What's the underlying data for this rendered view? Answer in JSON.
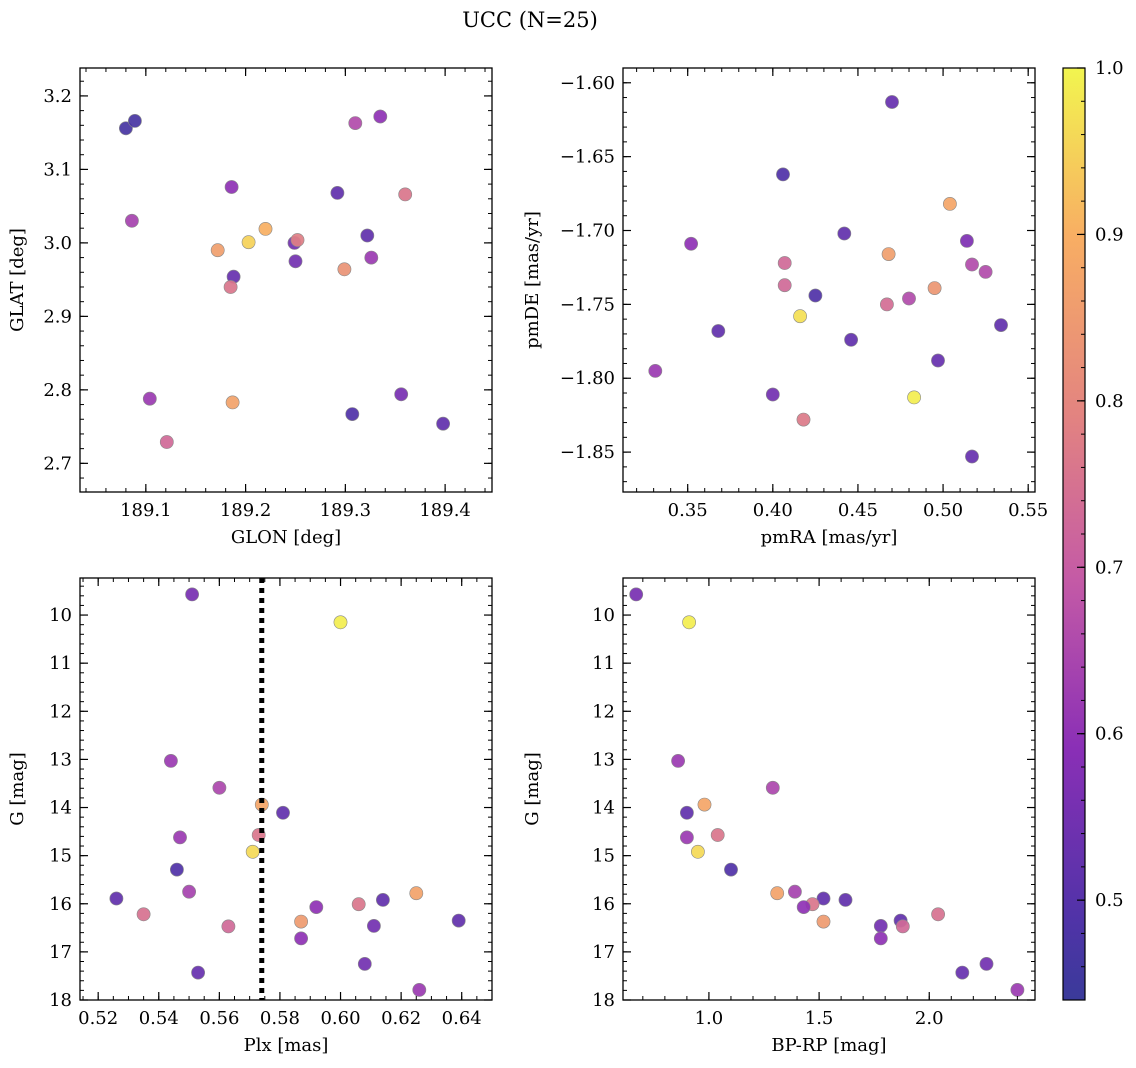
{
  "figure_title": "UCC (N=25)",
  "colorbar": {
    "min": 0.44,
    "max": 1.0,
    "ticks": [
      {
        "v": 0.5,
        "label": "0.5"
      },
      {
        "v": 0.6,
        "label": "0.6"
      },
      {
        "v": 0.7,
        "label": "0.7"
      },
      {
        "v": 0.8,
        "label": "0.8"
      },
      {
        "v": 0.9,
        "label": "0.9"
      },
      {
        "v": 1.0,
        "label": "1.0"
      }
    ],
    "colormap": "plasma"
  },
  "chart_data": [
    {
      "type": "scatter",
      "id": "p1",
      "xlabel": "GLON [deg]",
      "ylabel": "GLAT [deg]",
      "xlim": [
        189.034,
        189.447
      ],
      "ylim": [
        2.661,
        3.238
      ],
      "y_inverted": false,
      "xticks": [
        {
          "v": 189.1,
          "label": "189.1"
        },
        {
          "v": 189.2,
          "label": "189.2"
        },
        {
          "v": 189.3,
          "label": "189.3"
        },
        {
          "v": 189.4,
          "label": "189.4"
        }
      ],
      "yticks": [
        {
          "v": 2.7,
          "label": "2.7"
        },
        {
          "v": 2.8,
          "label": "2.8"
        },
        {
          "v": 2.9,
          "label": "2.9"
        },
        {
          "v": 3.0,
          "label": "3.0"
        },
        {
          "v": 3.1,
          "label": "3.1"
        },
        {
          "v": 3.2,
          "label": "3.2"
        }
      ],
      "x_minor_step": 0.02,
      "y_minor_step": 0.02,
      "points": [
        {
          "x": 189.08,
          "y": 3.156,
          "c": 0.47
        },
        {
          "x": 189.089,
          "y": 3.166,
          "c": 0.47
        },
        {
          "x": 189.086,
          "y": 3.03,
          "c": 0.64
        },
        {
          "x": 189.186,
          "y": 3.076,
          "c": 0.6
        },
        {
          "x": 189.31,
          "y": 3.163,
          "c": 0.66
        },
        {
          "x": 189.335,
          "y": 3.172,
          "c": 0.6
        },
        {
          "x": 189.292,
          "y": 3.068,
          "c": 0.52
        },
        {
          "x": 189.36,
          "y": 3.066,
          "c": 0.76
        },
        {
          "x": 189.172,
          "y": 2.99,
          "c": 0.86
        },
        {
          "x": 189.203,
          "y": 3.001,
          "c": 0.95
        },
        {
          "x": 189.22,
          "y": 3.019,
          "c": 0.9
        },
        {
          "x": 189.249,
          "y": 3.0,
          "c": 0.55
        },
        {
          "x": 189.252,
          "y": 3.004,
          "c": 0.78
        },
        {
          "x": 189.322,
          "y": 3.01,
          "c": 0.52
        },
        {
          "x": 189.25,
          "y": 2.975,
          "c": 0.55
        },
        {
          "x": 189.326,
          "y": 2.98,
          "c": 0.62
        },
        {
          "x": 189.299,
          "y": 2.964,
          "c": 0.83
        },
        {
          "x": 189.188,
          "y": 2.954,
          "c": 0.53
        },
        {
          "x": 189.185,
          "y": 2.94,
          "c": 0.76
        },
        {
          "x": 189.104,
          "y": 2.788,
          "c": 0.62
        },
        {
          "x": 189.187,
          "y": 2.783,
          "c": 0.87
        },
        {
          "x": 189.356,
          "y": 2.794,
          "c": 0.56
        },
        {
          "x": 189.307,
          "y": 2.767,
          "c": 0.49
        },
        {
          "x": 189.398,
          "y": 2.754,
          "c": 0.52
        },
        {
          "x": 189.121,
          "y": 2.729,
          "c": 0.73
        }
      ]
    },
    {
      "type": "scatter",
      "id": "p2",
      "xlabel": "pmRA [mas/yr]",
      "ylabel": "pmDE [mas/yr]",
      "xlim": [
        0.312,
        0.554
      ],
      "ylim": [
        -1.877,
        -1.59
      ],
      "y_inverted": false,
      "xticks": [
        {
          "v": 0.35,
          "label": "0.35"
        },
        {
          "v": 0.4,
          "label": "0.40"
        },
        {
          "v": 0.45,
          "label": "0.45"
        },
        {
          "v": 0.5,
          "label": "0.50"
        },
        {
          "v": 0.55,
          "label": "0.55"
        }
      ],
      "yticks": [
        {
          "v": -1.85,
          "label": "−1.85"
        },
        {
          "v": -1.8,
          "label": "−1.80"
        },
        {
          "v": -1.75,
          "label": "−1.75"
        },
        {
          "v": -1.7,
          "label": "−1.70"
        },
        {
          "v": -1.65,
          "label": "−1.65"
        },
        {
          "v": -1.6,
          "label": "−1.60"
        }
      ],
      "x_minor_step": 0.01,
      "y_minor_step": 0.01,
      "points": [
        {
          "x": 0.47,
          "y": -1.613,
          "c": 0.53
        },
        {
          "x": 0.406,
          "y": -1.662,
          "c": 0.49
        },
        {
          "x": 0.504,
          "y": -1.682,
          "c": 0.88
        },
        {
          "x": 0.442,
          "y": -1.702,
          "c": 0.52
        },
        {
          "x": 0.352,
          "y": -1.709,
          "c": 0.6
        },
        {
          "x": 0.514,
          "y": -1.707,
          "c": 0.57
        },
        {
          "x": 0.468,
          "y": -1.716,
          "c": 0.86
        },
        {
          "x": 0.407,
          "y": -1.722,
          "c": 0.73
        },
        {
          "x": 0.517,
          "y": -1.723,
          "c": 0.66
        },
        {
          "x": 0.525,
          "y": -1.728,
          "c": 0.66
        },
        {
          "x": 0.407,
          "y": -1.737,
          "c": 0.73
        },
        {
          "x": 0.495,
          "y": -1.739,
          "c": 0.84
        },
        {
          "x": 0.425,
          "y": -1.744,
          "c": 0.49
        },
        {
          "x": 0.48,
          "y": -1.746,
          "c": 0.66
        },
        {
          "x": 0.467,
          "y": -1.75,
          "c": 0.74
        },
        {
          "x": 0.416,
          "y": -1.758,
          "c": 0.97
        },
        {
          "x": 0.368,
          "y": -1.768,
          "c": 0.52
        },
        {
          "x": 0.534,
          "y": -1.764,
          "c": 0.52
        },
        {
          "x": 0.446,
          "y": -1.774,
          "c": 0.52
        },
        {
          "x": 0.497,
          "y": -1.788,
          "c": 0.53
        },
        {
          "x": 0.331,
          "y": -1.795,
          "c": 0.62
        },
        {
          "x": 0.4,
          "y": -1.811,
          "c": 0.55
        },
        {
          "x": 0.483,
          "y": -1.813,
          "c": 0.99
        },
        {
          "x": 0.418,
          "y": -1.828,
          "c": 0.77
        },
        {
          "x": 0.517,
          "y": -1.853,
          "c": 0.53
        }
      ]
    },
    {
      "type": "scatter",
      "id": "p3",
      "xlabel": "Plx [mas]",
      "ylabel": "G [mag]",
      "xlim": [
        0.514,
        0.65
      ],
      "ylim": [
        18.0,
        9.23
      ],
      "y_inverted": true,
      "vline": {
        "x": 0.574,
        "style": "dotted"
      },
      "xticks": [
        {
          "v": 0.52,
          "label": "0.52"
        },
        {
          "v": 0.54,
          "label": "0.54"
        },
        {
          "v": 0.56,
          "label": "0.56"
        },
        {
          "v": 0.58,
          "label": "0.58"
        },
        {
          "v": 0.6,
          "label": "0.60"
        },
        {
          "v": 0.62,
          "label": "0.62"
        },
        {
          "v": 0.64,
          "label": "0.64"
        }
      ],
      "yticks": [
        {
          "v": 10,
          "label": "10"
        },
        {
          "v": 11,
          "label": "11"
        },
        {
          "v": 12,
          "label": "12"
        },
        {
          "v": 13,
          "label": "13"
        },
        {
          "v": 14,
          "label": "14"
        },
        {
          "v": 15,
          "label": "15"
        },
        {
          "v": 16,
          "label": "16"
        },
        {
          "v": 17,
          "label": "17"
        },
        {
          "v": 18,
          "label": "18"
        }
      ],
      "x_minor_step": 0.005,
      "y_minor_step": 0.2,
      "points": [
        {
          "x": 0.551,
          "y": 9.57,
          "c": 0.56
        },
        {
          "x": 0.6,
          "y": 10.15,
          "c": 0.99
        },
        {
          "x": 0.544,
          "y": 13.03,
          "c": 0.62
        },
        {
          "x": 0.56,
          "y": 13.59,
          "c": 0.65
        },
        {
          "x": 0.574,
          "y": 13.94,
          "c": 0.88
        },
        {
          "x": 0.581,
          "y": 14.11,
          "c": 0.52
        },
        {
          "x": 0.573,
          "y": 14.57,
          "c": 0.76
        },
        {
          "x": 0.547,
          "y": 14.62,
          "c": 0.62
        },
        {
          "x": 0.571,
          "y": 14.92,
          "c": 0.96
        },
        {
          "x": 0.546,
          "y": 15.29,
          "c": 0.49
        },
        {
          "x": 0.55,
          "y": 15.75,
          "c": 0.64
        },
        {
          "x": 0.625,
          "y": 15.78,
          "c": 0.87
        },
        {
          "x": 0.526,
          "y": 15.89,
          "c": 0.52
        },
        {
          "x": 0.614,
          "y": 15.92,
          "c": 0.52
        },
        {
          "x": 0.606,
          "y": 16.01,
          "c": 0.76
        },
        {
          "x": 0.592,
          "y": 16.07,
          "c": 0.6
        },
        {
          "x": 0.535,
          "y": 16.22,
          "c": 0.75
        },
        {
          "x": 0.639,
          "y": 16.35,
          "c": 0.52
        },
        {
          "x": 0.587,
          "y": 16.37,
          "c": 0.85
        },
        {
          "x": 0.563,
          "y": 16.47,
          "c": 0.73
        },
        {
          "x": 0.611,
          "y": 16.46,
          "c": 0.55
        },
        {
          "x": 0.587,
          "y": 16.72,
          "c": 0.6
        },
        {
          "x": 0.608,
          "y": 17.25,
          "c": 0.55
        },
        {
          "x": 0.553,
          "y": 17.43,
          "c": 0.53
        },
        {
          "x": 0.626,
          "y": 17.79,
          "c": 0.62
        }
      ]
    },
    {
      "type": "scatter",
      "id": "p4",
      "xlabel": "BP-RP [mag]",
      "ylabel": "G [mag]",
      "xlim": [
        0.61,
        2.48
      ],
      "ylim": [
        18.0,
        9.23
      ],
      "y_inverted": true,
      "xticks": [
        {
          "v": 1.0,
          "label": "1.0"
        },
        {
          "v": 1.5,
          "label": "1.5"
        },
        {
          "v": 2.0,
          "label": "2.0"
        }
      ],
      "yticks": [
        {
          "v": 10,
          "label": "10"
        },
        {
          "v": 11,
          "label": "11"
        },
        {
          "v": 12,
          "label": "12"
        },
        {
          "v": 13,
          "label": "13"
        },
        {
          "v": 14,
          "label": "14"
        },
        {
          "v": 15,
          "label": "15"
        },
        {
          "v": 16,
          "label": "16"
        },
        {
          "v": 17,
          "label": "17"
        },
        {
          "v": 18,
          "label": "18"
        }
      ],
      "x_minor_step": 0.1,
      "y_minor_step": 0.2,
      "points": [
        {
          "x": 0.67,
          "y": 9.57,
          "c": 0.56
        },
        {
          "x": 0.91,
          "y": 10.15,
          "c": 0.99
        },
        {
          "x": 0.86,
          "y": 13.03,
          "c": 0.62
        },
        {
          "x": 1.29,
          "y": 13.59,
          "c": 0.65
        },
        {
          "x": 0.98,
          "y": 13.94,
          "c": 0.88
        },
        {
          "x": 0.9,
          "y": 14.11,
          "c": 0.52
        },
        {
          "x": 1.04,
          "y": 14.57,
          "c": 0.76
        },
        {
          "x": 0.9,
          "y": 14.62,
          "c": 0.62
        },
        {
          "x": 0.95,
          "y": 14.92,
          "c": 0.96
        },
        {
          "x": 1.1,
          "y": 15.29,
          "c": 0.49
        },
        {
          "x": 1.39,
          "y": 15.75,
          "c": 0.64
        },
        {
          "x": 1.31,
          "y": 15.78,
          "c": 0.87
        },
        {
          "x": 1.52,
          "y": 15.89,
          "c": 0.52
        },
        {
          "x": 1.62,
          "y": 15.92,
          "c": 0.52
        },
        {
          "x": 1.47,
          "y": 16.01,
          "c": 0.76
        },
        {
          "x": 1.43,
          "y": 16.07,
          "c": 0.6
        },
        {
          "x": 2.04,
          "y": 16.22,
          "c": 0.75
        },
        {
          "x": 1.87,
          "y": 16.35,
          "c": 0.52
        },
        {
          "x": 1.52,
          "y": 16.37,
          "c": 0.85
        },
        {
          "x": 1.88,
          "y": 16.47,
          "c": 0.73
        },
        {
          "x": 1.78,
          "y": 16.46,
          "c": 0.55
        },
        {
          "x": 1.78,
          "y": 16.72,
          "c": 0.6
        },
        {
          "x": 2.26,
          "y": 17.25,
          "c": 0.55
        },
        {
          "x": 2.15,
          "y": 17.43,
          "c": 0.53
        },
        {
          "x": 2.4,
          "y": 17.79,
          "c": 0.62
        }
      ]
    }
  ]
}
